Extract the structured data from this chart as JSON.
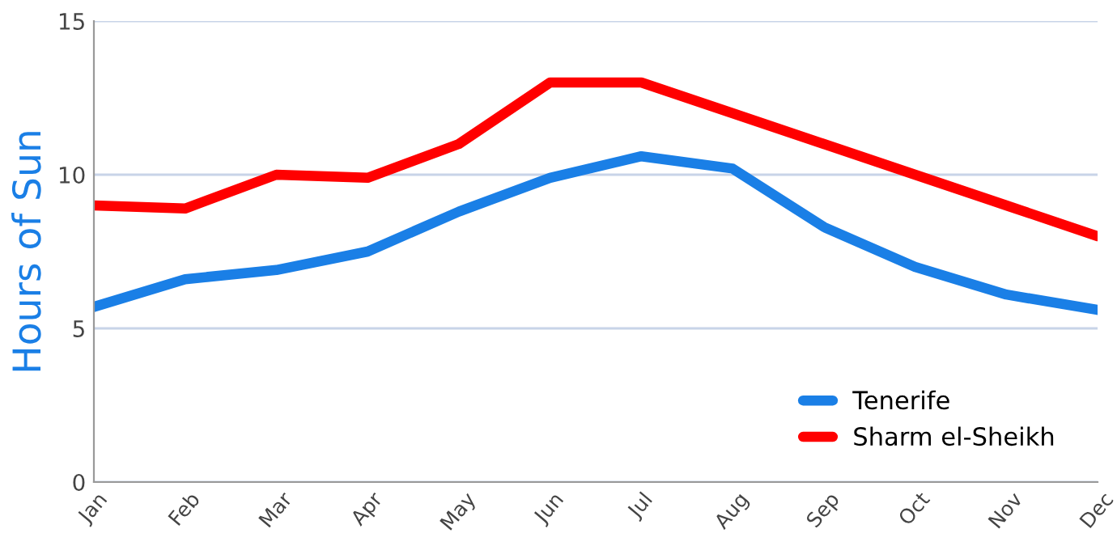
{
  "chart_data": {
    "type": "line",
    "ylabel": "Hours of Sun",
    "categories": [
      "Jan",
      "Feb",
      "Mar",
      "Apr",
      "May",
      "Jun",
      "Jul",
      "Aug",
      "Sep",
      "Oct",
      "Nov",
      "Dec"
    ],
    "series": [
      {
        "name": "Tenerife",
        "color": "#1a7fe6",
        "values": [
          5.7,
          6.6,
          6.9,
          7.5,
          8.8,
          9.9,
          10.6,
          10.2,
          8.3,
          7.0,
          6.1,
          5.6
        ]
      },
      {
        "name": "Sharm el-Sheikh",
        "color": "#ff0000",
        "values": [
          9.0,
          8.9,
          10.0,
          9.9,
          11.0,
          13.0,
          13.0,
          12.0,
          11.0,
          10.0,
          9.0,
          8.0
        ]
      }
    ],
    "ylim": [
      0,
      15
    ],
    "yticks": [
      0,
      5,
      10,
      15
    ],
    "grid": "y",
    "legend": "bottom right",
    "marker": "none",
    "line_style": "solid"
  }
}
